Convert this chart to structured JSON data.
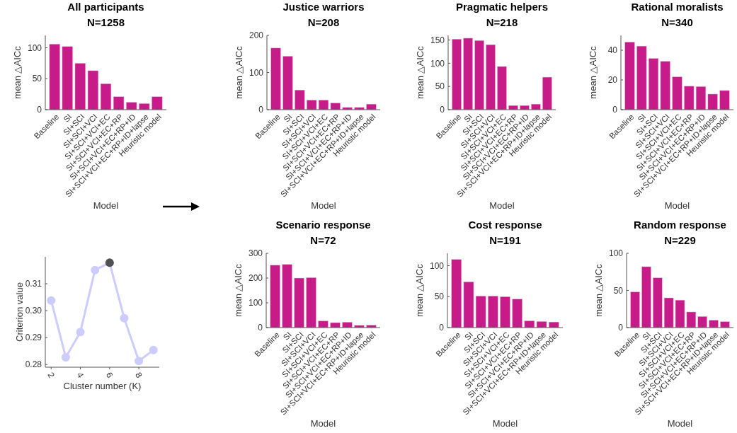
{
  "chart_data": [
    {
      "type": "bar",
      "title": "All participants",
      "subtitle": "N=1258",
      "xlabel": "Model",
      "ylabel": "mean △AICc",
      "categories": [
        "Baseline",
        "SI",
        "SI+SCI",
        "SI+SCI+VCI",
        "SI+SCI+VCI+EC",
        "SI+SCI+VCI+EC+RP",
        "SI+SCI+VCI+EC+RP+ID",
        "SI+SCI+VCI+EC+RP+ID+lapse",
        "Heuristic model"
      ],
      "values": [
        106,
        102,
        75,
        63,
        42,
        21,
        12,
        10,
        21
      ],
      "color": "#c71b8a",
      "ylim": [
        0,
        120
      ],
      "yticks": [
        0,
        50,
        100
      ]
    },
    {
      "type": "bar",
      "title": "Justice warriors",
      "subtitle": "N=208",
      "xlabel": "Model",
      "ylabel": "mean △AICc",
      "categories": [
        "Baseline",
        "SI",
        "SI+SCI",
        "SI+SCI+VCI",
        "SI+SCI+VCI+EC",
        "SI+SCI+VCI+EC+RP",
        "SI+SCI+VCI+EC+RP+ID",
        "SI+SCI+VCI+EC+RP+ID+lapse",
        "Heuristic model"
      ],
      "values": [
        166,
        144,
        53,
        26,
        26,
        18,
        6,
        6,
        15
      ],
      "color": "#c71b8a",
      "ylim": [
        0,
        200
      ],
      "yticks": [
        0,
        100,
        200
      ]
    },
    {
      "type": "bar",
      "title": "Pragmatic helpers",
      "subtitle": "N=218",
      "xlabel": "Model",
      "ylabel": "mean △AICc",
      "categories": [
        "Baseline",
        "SI",
        "SI+SCI",
        "SI+SCI+VCI",
        "SI+SCI+VCI+EC",
        "SI+SCI+VCI+EC+RP",
        "SI+SCI+VCI+EC+RP+ID",
        "SI+SCI+VCI+EC+RP+ID+lapse",
        "Heuristic model"
      ],
      "values": [
        152,
        154,
        149,
        140,
        93,
        9,
        9,
        12,
        70
      ],
      "color": "#c71b8a",
      "ylim": [
        0,
        160
      ],
      "yticks": [
        0,
        50,
        100,
        150
      ]
    },
    {
      "type": "bar",
      "title": "Rational moralists",
      "subtitle": "N=340",
      "xlabel": "Model",
      "ylabel": "mean △AICc",
      "categories": [
        "Baseline",
        "SI",
        "SI+SCI",
        "SI+SCI+VCI",
        "SI+SCI+VCI+EC",
        "SI+SCI+VCI+EC+RP",
        "SI+SCI+VCI+EC+RP+ID",
        "SI+SCI+VCI+EC+RP+ID+lapse",
        "Heuristic model"
      ],
      "values": [
        45.5,
        42.8,
        34.5,
        32.5,
        22.1,
        15.8,
        15.6,
        10.5,
        12.9
      ],
      "color": "#c71b8a",
      "ylim": [
        0,
        50
      ],
      "yticks": [
        0,
        20,
        40
      ]
    },
    {
      "type": "line",
      "xlabel": "Cluster number (K)",
      "ylabel": "Criterion value",
      "x": [
        2,
        3,
        4,
        5,
        6,
        7,
        8,
        9
      ],
      "values": [
        0.3038,
        0.2827,
        0.2921,
        0.3151,
        0.3178,
        0.2972,
        0.2813,
        0.2854
      ],
      "color": "#ccccff",
      "colors": [
        "#ccccff",
        "#ccccff",
        "#ccccff",
        "#ccccff",
        "#505050",
        "#ccccff",
        "#ccccff",
        "#ccccff"
      ],
      "marker": "circle",
      "xlim": [
        1.6,
        9.4
      ],
      "xticks": [
        2,
        4,
        6,
        8
      ],
      "ylim": [
        0.279,
        0.32
      ],
      "yticks": [
        0.28,
        0.29,
        {
          "value": 0.3,
          "label": "0.30"
        },
        0.31
      ]
    },
    {
      "type": "bar",
      "title": "Scenario response",
      "subtitle": "N=72",
      "xlabel": "Model",
      "ylabel": "mean △AICc",
      "categories": [
        "Baseline",
        "SI",
        "SI+SCI",
        "SI+SCI+VCI",
        "SI+SCI+VCI+EC",
        "SI+SCI+VCI+EC+RP",
        "SI+SCI+VCI+EC+RP+ID",
        "SI+SCI+VCI+EC+RP+ID+lapse",
        "Heuristic model"
      ],
      "values": [
        252,
        255,
        200,
        202,
        27,
        20,
        22,
        9,
        10
      ],
      "color": "#c71b8a",
      "ylim": [
        0,
        300
      ],
      "yticks": [
        0,
        100,
        200,
        300
      ]
    },
    {
      "type": "bar",
      "title": "Cost response",
      "subtitle": "N=191",
      "xlabel": "Model",
      "ylabel": "mean △AICc",
      "categories": [
        "Baseline",
        "SI",
        "SI+SCI",
        "SI+SCI+VCI",
        "SI+SCI+VCI+EC",
        "SI+SCI+VCI+EC+RP",
        "SI+SCI+VCI+EC+RP+ID",
        "SI+SCI+VCI+EC+RP+ID+lapse",
        "Heuristic model"
      ],
      "values": [
        110,
        74,
        51,
        51,
        50,
        46,
        11,
        10,
        9
      ],
      "color": "#c71b8a",
      "ylim": [
        0,
        120
      ],
      "yticks": [
        0,
        50,
        100
      ]
    },
    {
      "type": "bar",
      "title": "Random response",
      "subtitle": "N=229",
      "xlabel": "Model",
      "ylabel": "mean △AICc",
      "categories": [
        "Baseline",
        "SI",
        "SI+SCI",
        "SI+SCI+VCI",
        "SI+SCI+VCI+EC",
        "SI+SCI+VCI+EC+RP",
        "SI+SCI+VCI+EC+RP+ID",
        "SI+SCI+VCI+EC+RP+ID+lapse",
        "Heuristic model"
      ],
      "values": [
        48,
        82,
        67,
        40,
        37,
        21,
        15,
        10,
        8
      ],
      "color": "#c71b8a",
      "ylim": [
        0,
        100
      ],
      "yticks": [
        0,
        50,
        100
      ]
    }
  ]
}
